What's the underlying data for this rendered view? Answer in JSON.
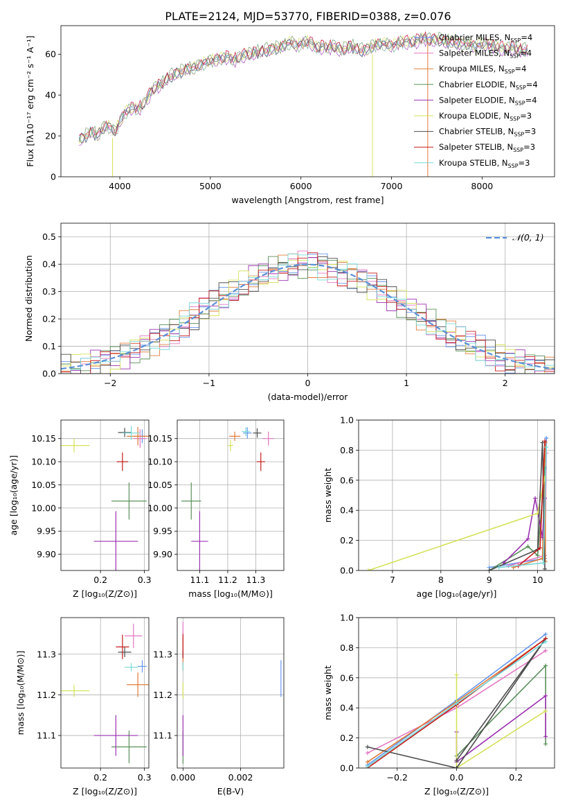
{
  "figure": {
    "title": "PLATE=2124, MJD=53770, FIBERID=0388, z=0.076"
  },
  "series_legend": [
    {
      "name": "Chabrier MILES, N",
      "sub": "SSP",
      "tail": "=4",
      "color": "#6495ed"
    },
    {
      "name": "Salpeter MILES, N",
      "sub": "SSP",
      "tail": "=4",
      "color": "#e377c2"
    },
    {
      "name": "Kroupa MILES, N",
      "sub": "SSP",
      "tail": "=4",
      "color": "#e07b39"
    },
    {
      "name": "Chabrier ELODIE, N",
      "sub": "SSP",
      "tail": "=4",
      "color": "#5a8f5a"
    },
    {
      "name": "Salpeter ELODIE, N",
      "sub": "SSP",
      "tail": "=4",
      "color": "#9b30b0"
    },
    {
      "name": "Kroupa ELODIE, N",
      "sub": "SSP",
      "tail": "=3",
      "color": "#d4e157"
    },
    {
      "name": "Chabrier STELIB, N",
      "sub": "SSP",
      "tail": "=3",
      "color": "#4d4d4d"
    },
    {
      "name": "Salpeter STELIB, N",
      "sub": "SSP",
      "tail": "=3",
      "color": "#c41b1b"
    },
    {
      "name": "Kroupa STELIB, N",
      "sub": "SSP",
      "tail": "=3",
      "color": "#76d7d7"
    }
  ],
  "chart_data": [
    {
      "id": "spectrum",
      "type": "line",
      "xlabel": "wavelength [Angstrom, rest frame]",
      "ylabel": "Flux [fλ10⁻¹⁷ erg cm⁻² s⁻¹ A⁻¹]",
      "xlim": [
        3350,
        8800
      ],
      "ylim": [
        0,
        74
      ],
      "xticks": [
        4000,
        5000,
        6000,
        7000,
        8000
      ],
      "yticks": [
        0,
        20,
        40,
        60
      ],
      "x": [
        3550,
        3600,
        3650,
        3700,
        3750,
        3800,
        3850,
        3900,
        3950,
        4000,
        4050,
        4100,
        4150,
        4200,
        4250,
        4300,
        4350,
        4400,
        4450,
        4500,
        4550,
        4600,
        4650,
        4700,
        4750,
        4800,
        4850,
        4900,
        4950,
        5000,
        5050,
        5100,
        5150,
        5200,
        5250,
        5300,
        5350,
        5400,
        5450,
        5500,
        5550,
        5600,
        5650,
        5700,
        5750,
        5800,
        5850,
        5900,
        5950,
        6000,
        6050,
        6100,
        6150,
        6200,
        6250,
        6300,
        6350,
        6400,
        6450,
        6500,
        6550,
        6600,
        6650,
        6700,
        6750,
        6800,
        6850,
        6900,
        6950,
        7000,
        7050,
        7100,
        7150,
        7200,
        7250,
        7300,
        7350,
        7400,
        7450,
        7500,
        7550,
        7600,
        7650,
        7700,
        7750,
        7800,
        7850,
        7900,
        7950,
        8000,
        8050,
        8100,
        8150,
        8200,
        8250,
        8300,
        8350,
        8400,
        8450,
        8500
      ],
      "y": [
        18,
        19,
        21,
        22,
        20,
        23,
        25,
        24,
        22,
        27,
        31,
        33,
        34,
        33,
        35,
        38,
        42,
        44,
        45,
        47,
        49,
        50,
        51,
        52,
        53,
        53,
        54,
        55,
        56,
        57,
        57,
        58,
        58,
        59,
        57,
        58,
        59,
        60,
        60,
        61,
        61,
        62,
        62,
        63,
        63,
        64,
        65,
        66,
        64,
        65,
        66,
        66,
        64,
        63,
        64,
        63,
        64,
        63,
        62,
        63,
        64,
        63,
        62,
        62,
        63,
        64,
        65,
        65,
        65,
        64,
        65,
        66,
        66,
        66,
        66,
        67,
        68,
        67,
        67,
        67,
        67,
        66,
        66,
        66,
        65,
        65,
        65,
        64,
        64,
        65,
        65,
        64,
        64,
        63,
        63,
        63,
        63,
        62,
        62,
        62
      ]
    },
    {
      "id": "residuals",
      "type": "histogram",
      "xlabel": "(data-model)/error",
      "ylabel": "Normed distribution",
      "xlim": [
        -2.5,
        2.5
      ],
      "ylim": [
        0,
        0.55
      ],
      "xticks": [
        -2,
        -1,
        0,
        1,
        2
      ],
      "yticks": [
        0.0,
        0.1,
        0.2,
        0.3,
        0.4,
        0.5
      ],
      "bin_width": 0.1,
      "reference_curve": "N(0,1)",
      "grid": true,
      "legend": "upper right"
    },
    {
      "id": "age_vs_Z",
      "type": "scatter",
      "xlabel": "Z [log₁₀(Z/Z⊙)]",
      "ylabel": "age  [log₁₀(age/yr)]",
      "xlim": [
        0.11,
        0.31
      ],
      "ylim": [
        9.865,
        10.19
      ],
      "xticks": [
        0.2,
        0.3
      ],
      "yticks": [
        9.9,
        9.95,
        10.0,
        10.05,
        10.1,
        10.15
      ],
      "points": [
        {
          "x": 0.295,
          "y": 10.155,
          "ex": 0.012,
          "ey": 0.015
        },
        {
          "x": 0.29,
          "y": 10.15,
          "ex": 0.015,
          "ey": 0.02
        },
        {
          "x": 0.285,
          "y": 10.155,
          "ex": 0.025,
          "ey": 0.02
        },
        {
          "x": 0.265,
          "y": 10.015,
          "ex": 0.04,
          "ey": 0.04
        },
        {
          "x": 0.235,
          "y": 9.928,
          "ex": 0.05,
          "ey": 0.065
        },
        {
          "x": 0.14,
          "y": 10.135,
          "ex": 0.035,
          "ey": 0.015
        },
        {
          "x": 0.255,
          "y": 10.163,
          "ex": 0.015,
          "ey": 0.01
        },
        {
          "x": 0.25,
          "y": 10.1,
          "ex": 0.013,
          "ey": 0.02
        },
        {
          "x": 0.27,
          "y": 10.162,
          "ex": 0.02,
          "ey": 0.015
        }
      ]
    },
    {
      "id": "age_vs_mass",
      "type": "scatter",
      "xlabel": "mass [log₁₀(M/M⊙)]",
      "ylabel": "",
      "xlim": [
        11.02,
        11.4
      ],
      "ylim": [
        9.865,
        10.19
      ],
      "xticks": [
        11.1,
        11.2,
        11.3
      ],
      "yticks": [
        9.9,
        9.95,
        10.0,
        10.05,
        10.1,
        10.15
      ],
      "points": [
        {
          "x": 11.27,
          "y": 10.162,
          "ex": 0.015,
          "ey": 0.012
        },
        {
          "x": 11.345,
          "y": 10.15,
          "ex": 0.02,
          "ey": 0.015
        },
        {
          "x": 11.225,
          "y": 10.155,
          "ex": 0.02,
          "ey": 0.01
        },
        {
          "x": 11.07,
          "y": 10.015,
          "ex": 0.035,
          "ey": 0.04
        },
        {
          "x": 11.1,
          "y": 9.928,
          "ex": 0.03,
          "ey": 0.065
        },
        {
          "x": 11.21,
          "y": 10.135,
          "ex": 0.01,
          "ey": 0.012
        },
        {
          "x": 11.305,
          "y": 10.162,
          "ex": 0.015,
          "ey": 0.01
        },
        {
          "x": 11.318,
          "y": 10.1,
          "ex": 0.015,
          "ey": 0.02
        },
        {
          "x": 11.265,
          "y": 10.165,
          "ex": 0.015,
          "ey": 0.01
        }
      ]
    },
    {
      "id": "mass_weight_vs_age",
      "type": "line",
      "xlabel": "age  [log₁₀(age/yr)]",
      "ylabel": "mass weight",
      "xlim": [
        6.3,
        10.35
      ],
      "ylim": [
        0,
        1.0
      ],
      "xticks": [
        7,
        8,
        9,
        10
      ],
      "yticks": [
        0.0,
        0.2,
        0.4,
        0.6,
        0.8,
        1.0
      ],
      "series": [
        {
          "x": [
            9.0,
            10.15,
            10.18,
            10.18
          ],
          "y": [
            0.02,
            0.08,
            0.88,
            0.88
          ]
        },
        {
          "x": [
            9.4,
            10.15,
            10.18
          ],
          "y": [
            0.03,
            0.1,
            0.78
          ]
        },
        {
          "x": [
            9.5,
            10.1,
            10.16,
            10.16
          ],
          "y": [
            0.02,
            0.08,
            0.85,
            0.06
          ]
        },
        {
          "x": [
            9.0,
            9.8,
            10.0,
            10.15
          ],
          "y": [
            0.0,
            0.16,
            0.1,
            0.68
          ]
        },
        {
          "x": [
            9.3,
            9.8,
            9.95,
            10.1,
            10.15
          ],
          "y": [
            0.05,
            0.21,
            0.48,
            0.22,
            0.48
          ]
        },
        {
          "x": [
            6.5,
            10.0,
            10.15
          ],
          "y": [
            0.0,
            0.38,
            0.62
          ]
        },
        {
          "x": [
            9.0,
            10.0,
            10.1,
            10.15
          ],
          "y": [
            0.0,
            0.14,
            0.85,
            0.01
          ]
        },
        {
          "x": [
            9.6,
            10.05,
            10.15
          ],
          "y": [
            0.03,
            0.15,
            0.86
          ]
        },
        {
          "x": [
            9.2,
            10.12,
            10.18
          ],
          "y": [
            0.02,
            0.05,
            0.82
          ]
        }
      ]
    },
    {
      "id": "mass_vs_Z",
      "type": "scatter",
      "xlabel": "Z [log₁₀(Z/Z⊙)]",
      "ylabel": "mass [log₁₀(M/M⊙)]",
      "xlim": [
        0.11,
        0.31
      ],
      "ylim": [
        11.02,
        11.39
      ],
      "xticks": [
        0.2,
        0.3
      ],
      "yticks": [
        11.1,
        11.2,
        11.3
      ],
      "points": [
        {
          "x": 0.295,
          "y": 11.27,
          "ex": 0.01,
          "ey": 0.015
        },
        {
          "x": 0.275,
          "y": 11.345,
          "ex": 0.02,
          "ey": 0.03
        },
        {
          "x": 0.285,
          "y": 11.225,
          "ex": 0.025,
          "ey": 0.03
        },
        {
          "x": 0.265,
          "y": 11.072,
          "ex": 0.04,
          "ey": 0.04
        },
        {
          "x": 0.235,
          "y": 11.1,
          "ex": 0.05,
          "ey": 0.05
        },
        {
          "x": 0.14,
          "y": 11.21,
          "ex": 0.035,
          "ey": 0.015
        },
        {
          "x": 0.255,
          "y": 11.305,
          "ex": 0.015,
          "ey": 0.012
        },
        {
          "x": 0.25,
          "y": 11.318,
          "ex": 0.015,
          "ey": 0.03
        },
        {
          "x": 0.27,
          "y": 11.268,
          "ex": 0.015,
          "ey": 0.01
        }
      ]
    },
    {
      "id": "mass_vs_EBV",
      "type": "scatter",
      "xlabel": "E(B-V)",
      "ylabel": "",
      "xlim": [
        -0.0002,
        0.0035
      ],
      "ylim": [
        11.02,
        11.39
      ],
      "xticks": [
        0.0,
        0.002
      ],
      "yticks": [
        11.1,
        11.2,
        11.3
      ],
      "points": [
        {
          "x": 0.0034,
          "y": 11.24,
          "ex": 0.0,
          "ey": 0.045
        },
        {
          "x": 0.0,
          "y": 11.34,
          "ex": 0.0,
          "ey": 0.04
        },
        {
          "x": 0.0,
          "y": 11.3,
          "ex": 0.0,
          "ey": 0.04
        },
        {
          "x": 0.0,
          "y": 11.07,
          "ex": 0.0,
          "ey": 0.04
        },
        {
          "x": 0.0,
          "y": 11.1,
          "ex": 0.0,
          "ey": 0.05
        },
        {
          "x": 0.0,
          "y": 11.21,
          "ex": 0.0,
          "ey": 0.02
        },
        {
          "x": 0.0,
          "y": 11.3,
          "ex": 0.0,
          "ey": 0.01
        },
        {
          "x": 0.0,
          "y": 11.32,
          "ex": 0.0,
          "ey": 0.03
        },
        {
          "x": 0.0,
          "y": 11.27,
          "ex": 0.0,
          "ey": 0.01
        }
      ]
    },
    {
      "id": "mass_weight_vs_Z",
      "type": "line",
      "xlabel": "Z [log₁₀(Z/Z⊙)]",
      "ylabel": "mass weight",
      "xlim": [
        -0.33,
        0.33
      ],
      "ylim": [
        0,
        1.0
      ],
      "xticks": [
        -0.2,
        0.0,
        0.2
      ],
      "yticks": [
        0.0,
        0.2,
        0.4,
        0.6,
        0.8,
        1.0
      ],
      "series": [
        {
          "x": [
            -0.3,
            0.0,
            0.3
          ],
          "y": [
            0.02,
            0.45,
            0.89
          ]
        },
        {
          "x": [
            -0.3,
            0.0,
            0.3
          ],
          "y": [
            0.1,
            0.4,
            0.78
          ]
        },
        {
          "x": [
            -0.3,
            0.0,
            0.3
          ],
          "y": [
            0.04,
            0.44,
            0.86
          ]
        },
        {
          "x": [
            0.0,
            0.3,
            0.3
          ],
          "y": [
            0.08,
            0.68,
            0.16
          ]
        },
        {
          "x": [
            0.0,
            0.0,
            0.3,
            0.3
          ],
          "y": [
            0.24,
            0.04,
            0.48,
            0.21
          ]
        },
        {
          "x": [
            0.0,
            0.0,
            0.3
          ],
          "y": [
            0.62,
            0.0,
            0.38
          ]
        },
        {
          "x": [
            -0.3,
            0.0,
            0.3,
            0.0
          ],
          "y": [
            0.14,
            0.0,
            0.86,
            0.05
          ]
        },
        {
          "x": [
            -0.3,
            0.0,
            0.3
          ],
          "y": [
            0.0,
            0.42,
            0.86
          ]
        },
        {
          "x": [
            -0.3,
            0.0,
            0.3
          ],
          "y": [
            0.01,
            0.43,
            0.84
          ]
        }
      ]
    }
  ]
}
